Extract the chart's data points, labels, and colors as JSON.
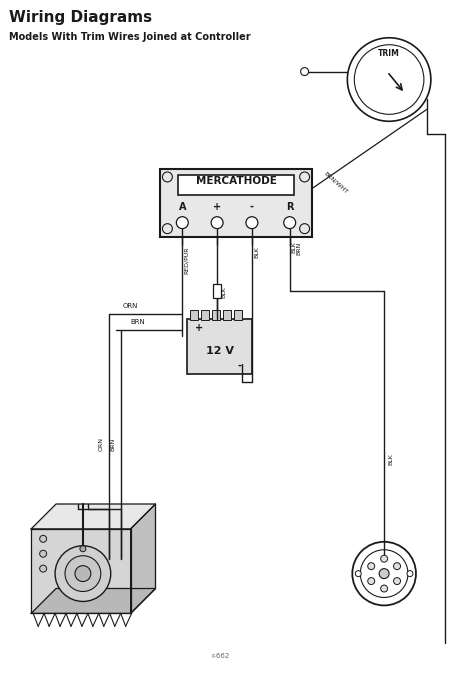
{
  "title": "Wiring Diagrams",
  "subtitle": "Models With Trim Wires Joined at Controller",
  "bg_color": "#ffffff",
  "line_color": "#1a1a1a",
  "title_fontsize": 11,
  "subtitle_fontsize": 7,
  "fig_width": 4.74,
  "fig_height": 6.75,
  "dpi": 100,
  "wire_labels": {
    "ORN": "ORN",
    "BRN": "BRN",
    "BLK": "BLK",
    "RED_PUR": "RED/PUR",
    "BRN_WHT": "BRN/WHT"
  },
  "component_labels": {
    "mercathode": "MERCATHODE",
    "terminals": [
      "A",
      "+",
      "-",
      "R"
    ],
    "battery": "12 V",
    "trim": "TRIM"
  }
}
